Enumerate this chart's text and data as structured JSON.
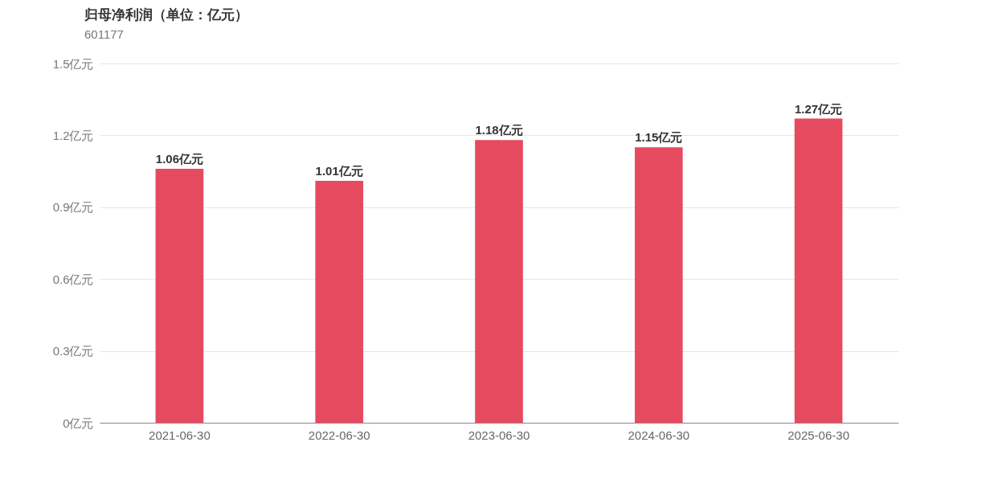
{
  "chart_data": {
    "type": "bar",
    "title": "归母净利润（单位：亿元）",
    "subtitle": "601177",
    "categories": [
      "2021-06-30",
      "2022-06-30",
      "2023-06-30",
      "2024-06-30",
      "2025-06-30"
    ],
    "values": [
      1.06,
      1.01,
      1.18,
      1.15,
      1.27
    ],
    "value_labels": [
      "1.06亿元",
      "1.01亿元",
      "1.18亿元",
      "1.15亿元",
      "1.27亿元"
    ],
    "color": "#e64a5f",
    "ylim": [
      0,
      1.5
    ],
    "yticks": [
      {
        "value": 0,
        "label": "0亿元"
      },
      {
        "value": 0.3,
        "label": "0.3亿元"
      },
      {
        "value": 0.6,
        "label": "0.6亿元"
      },
      {
        "value": 0.9,
        "label": "0.9亿元"
      },
      {
        "value": 1.2,
        "label": "1.2亿元"
      },
      {
        "value": 1.5,
        "label": "1.5亿元"
      }
    ],
    "grid": "y"
  }
}
